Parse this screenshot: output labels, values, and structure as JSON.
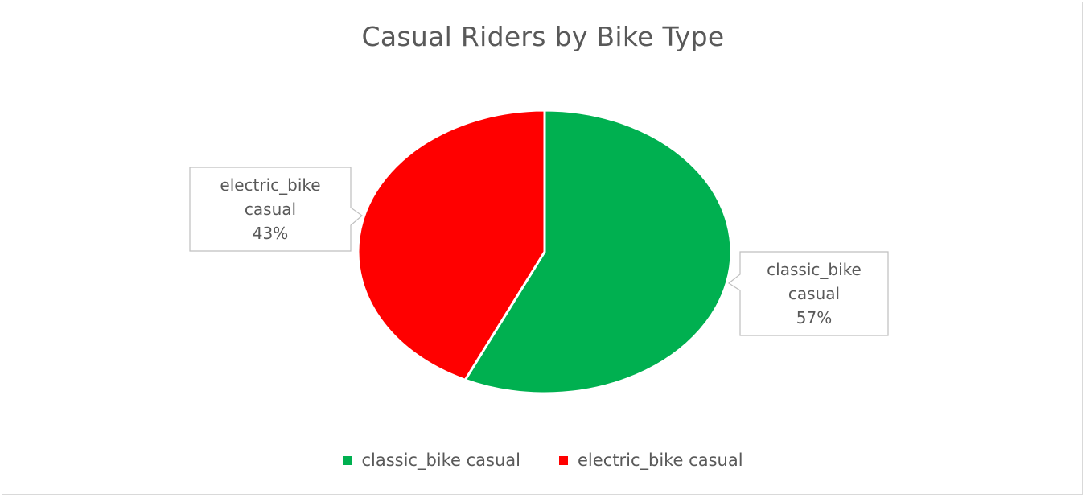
{
  "chart_data": {
    "type": "pie",
    "title": "Casual Riders by Bike Type",
    "slices": [
      {
        "name": "classic_bike casual",
        "label_lines": [
          "classic_bike",
          "casual",
          "57%"
        ],
        "value": 57,
        "color": "#00b050"
      },
      {
        "name": "electric_bike casual",
        "label_lines": [
          "electric_bike",
          "casual",
          "43%"
        ],
        "value": 43,
        "color": "#ff0000"
      }
    ],
    "legend": {
      "placement": "bottom",
      "items": [
        {
          "label": "classic_bike casual",
          "color": "#00b050"
        },
        {
          "label": "electric_bike casual",
          "color": "#ff0000"
        }
      ]
    }
  }
}
